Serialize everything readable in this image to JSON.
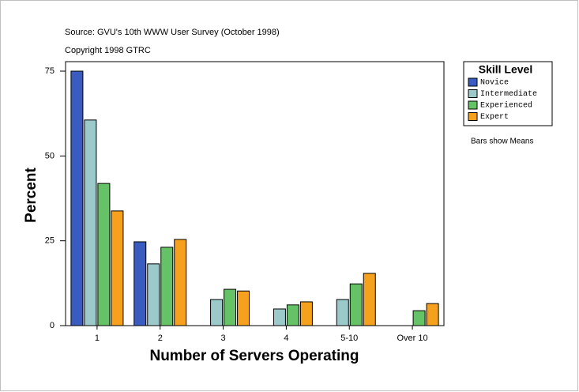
{
  "chart_data": {
    "type": "bar",
    "source": "Source: GVU's 10th WWW User Survey (October 1998)",
    "copyright": "Copyright 1998 GTRC",
    "x_label": "Number of Servers Operating",
    "y_label": "Percent",
    "legend_title": "Skill Level",
    "note": "Bars show Means",
    "categories": [
      "1",
      "2",
      "3",
      "4",
      "5-10",
      "Over 10"
    ],
    "series": [
      {
        "name": "Novice",
        "color": "#3a5cc0",
        "values": [
          75,
          24.7,
          null,
          null,
          null,
          null
        ]
      },
      {
        "name": "Intermediate",
        "color": "#9ccacb",
        "values": [
          60.6,
          18.2,
          7.7,
          4.9,
          7.7,
          null
        ]
      },
      {
        "name": "Experienced",
        "color": "#66c266",
        "values": [
          41.9,
          23.1,
          10.7,
          6.1,
          12.3,
          4.4
        ]
      },
      {
        "name": "Expert",
        "color": "#f5a11d",
        "values": [
          33.8,
          25.4,
          10.2,
          7.0,
          15.4,
          6.5
        ]
      }
    ],
    "ylim": [
      0,
      77.8
    ],
    "yticks": [
      0,
      25,
      50,
      75
    ],
    "grid": false
  }
}
